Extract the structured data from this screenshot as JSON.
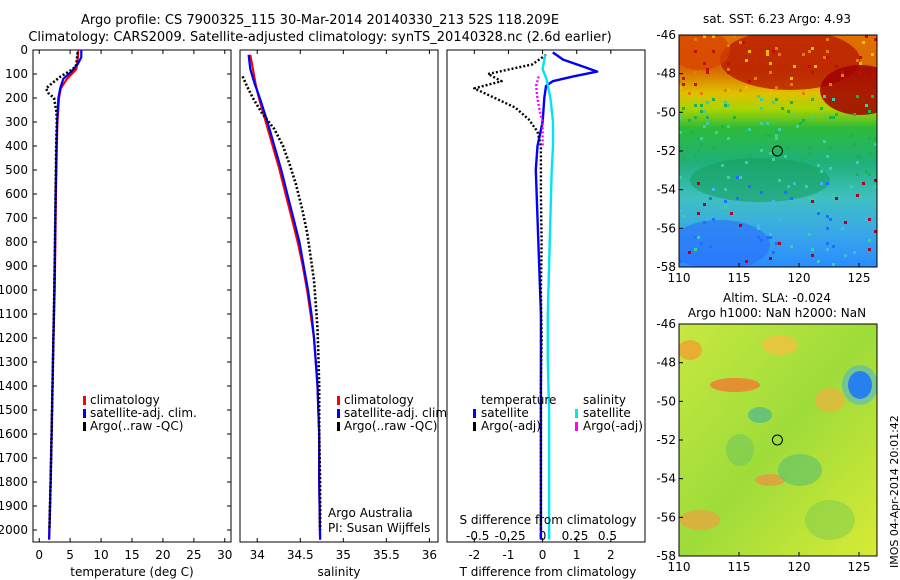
{
  "title": {
    "line1": "Argo profile: CS 7900325_115 30-Mar-2014 20140330_213 52S 118.209E",
    "line2": "Climatology: CARS2009. Satellite-adjusted climatology: synTS_20140328.nc (2.6d earlier)"
  },
  "credit": {
    "org": "Argo Australia",
    "pi": "PI: Susan Wijffels",
    "imos": "IMOS 04-Apr-2014 20:01:42"
  },
  "colors": {
    "climatology": "#ff0000",
    "satellite": "#0000ff",
    "argo": "#000000",
    "salinity_satellite": "#00e5ee",
    "salinity_argo": "#ff00ff"
  },
  "chart_data": [
    {
      "id": "temperature",
      "type": "line",
      "xlabel": "temperature (deg C)",
      "ylabel": "",
      "xlim": [
        -1,
        31
      ],
      "ylim": [
        2050,
        0
      ],
      "xticks": [
        "0",
        "5",
        "10",
        "15",
        "20",
        "25",
        "30"
      ],
      "xtick_values": [
        0,
        5,
        10,
        15,
        20,
        25,
        30
      ],
      "yticks": [
        "0",
        "100",
        "200",
        "300",
        "400",
        "500",
        "600",
        "700",
        "800",
        "900",
        "1000",
        "1100",
        "1200",
        "1300",
        "1400",
        "1500",
        "1600",
        "1700",
        "1800",
        "1900",
        "2000"
      ],
      "ytick_values": [
        0,
        100,
        200,
        300,
        400,
        500,
        600,
        700,
        800,
        900,
        1000,
        1100,
        1200,
        1300,
        1400,
        1500,
        1600,
        1700,
        1800,
        1900,
        2000
      ],
      "legend": [
        "climatology",
        "satellite-adj. clim.",
        "Argo(..raw -QC)"
      ],
      "series": [
        {
          "name": "climatology",
          "points": [
            [
              6.3,
              0
            ],
            [
              6.2,
              40
            ],
            [
              6.0,
              80
            ],
            [
              4.5,
              120
            ],
            [
              3.5,
              160
            ],
            [
              3.2,
              200
            ],
            [
              2.95,
              300
            ],
            [
              2.85,
              400
            ],
            [
              2.7,
              600
            ],
            [
              2.6,
              800
            ],
            [
              2.5,
              1000
            ],
            [
              2.3,
              1200
            ],
            [
              2.15,
              1400
            ],
            [
              2.0,
              1600
            ],
            [
              1.85,
              1800
            ],
            [
              1.65,
              2000
            ],
            [
              1.6,
              2040
            ]
          ]
        },
        {
          "name": "satellite-adj. clim.",
          "points": [
            [
              6.8,
              0
            ],
            [
              6.8,
              30
            ],
            [
              6.2,
              60
            ],
            [
              5.2,
              90
            ],
            [
              3.9,
              120
            ],
            [
              3.4,
              160
            ],
            [
              3.1,
              200
            ],
            [
              2.9,
              300
            ],
            [
              2.8,
              400
            ],
            [
              2.65,
              600
            ],
            [
              2.55,
              800
            ],
            [
              2.45,
              1000
            ],
            [
              2.3,
              1200
            ],
            [
              2.15,
              1400
            ],
            [
              2.0,
              1600
            ],
            [
              1.85,
              1800
            ],
            [
              1.65,
              2000
            ],
            [
              1.6,
              2040
            ]
          ]
        },
        {
          "name": "Argo(..raw -QC)",
          "points": [
            [
              6.2,
              10
            ],
            [
              6.1,
              40
            ],
            [
              5.9,
              70
            ],
            [
              4.8,
              90
            ],
            [
              3.5,
              110
            ],
            [
              2.0,
              140
            ],
            [
              1.1,
              160
            ],
            [
              1.5,
              180
            ],
            [
              2.4,
              200
            ],
            [
              2.8,
              260
            ],
            [
              2.85,
              300
            ],
            [
              2.75,
              400
            ],
            [
              2.65,
              600
            ],
            [
              2.55,
              800
            ],
            [
              2.45,
              1000
            ],
            [
              2.3,
              1200
            ],
            [
              2.15,
              1400
            ],
            [
              2.0,
              1600
            ],
            [
              1.85,
              1800
            ],
            [
              1.65,
              2000
            ]
          ]
        }
      ]
    },
    {
      "id": "salinity",
      "type": "line",
      "xlabel": "salinity",
      "xlim": [
        33.8,
        36.1
      ],
      "ylim": [
        2050,
        0
      ],
      "xticks": [
        "34",
        "34.5",
        "35",
        "35.5",
        "36"
      ],
      "xtick_values": [
        34,
        34.5,
        35,
        35.5,
        36
      ],
      "legend": [
        "climatology",
        "satellite-adj. clim.",
        "Argo(..raw -QC)"
      ],
      "series": [
        {
          "name": "climatology",
          "points": [
            [
              33.92,
              20
            ],
            [
              33.95,
              80
            ],
            [
              33.98,
              140
            ],
            [
              34.02,
              200
            ],
            [
              34.1,
              300
            ],
            [
              34.18,
              400
            ],
            [
              34.26,
              500
            ],
            [
              34.33,
              600
            ],
            [
              34.4,
              700
            ],
            [
              34.47,
              800
            ],
            [
              34.53,
              900
            ],
            [
              34.58,
              1000
            ],
            [
              34.62,
              1100
            ],
            [
              34.66,
              1200
            ],
            [
              34.68,
              1300
            ],
            [
              34.7,
              1400
            ],
            [
              34.71,
              1500
            ],
            [
              34.72,
              1600
            ],
            [
              34.72,
              1800
            ],
            [
              34.73,
              2040
            ]
          ]
        },
        {
          "name": "satellite-adj. clim.",
          "points": [
            [
              33.9,
              20
            ],
            [
              33.92,
              80
            ],
            [
              33.97,
              140
            ],
            [
              34.03,
              200
            ],
            [
              34.12,
              300
            ],
            [
              34.2,
              400
            ],
            [
              34.28,
              500
            ],
            [
              34.35,
              600
            ],
            [
              34.42,
              700
            ],
            [
              34.49,
              800
            ],
            [
              34.54,
              900
            ],
            [
              34.59,
              1000
            ],
            [
              34.63,
              1100
            ],
            [
              34.66,
              1200
            ],
            [
              34.68,
              1300
            ],
            [
              34.7,
              1400
            ],
            [
              34.71,
              1500
            ],
            [
              34.72,
              1600
            ],
            [
              34.72,
              1800
            ],
            [
              34.73,
              2040
            ]
          ]
        },
        {
          "name": "Argo(..raw -QC)",
          "points": [
            [
              33.83,
              110
            ],
            [
              33.88,
              150
            ],
            [
              33.95,
              200
            ],
            [
              34.05,
              260
            ],
            [
              34.2,
              330
            ],
            [
              34.3,
              400
            ],
            [
              34.38,
              480
            ],
            [
              34.45,
              560
            ],
            [
              34.52,
              660
            ],
            [
              34.58,
              760
            ],
            [
              34.62,
              860
            ],
            [
              34.66,
              960
            ],
            [
              34.68,
              1060
            ],
            [
              34.7,
              1160
            ],
            [
              34.71,
              1260
            ],
            [
              34.72,
              1400
            ],
            [
              34.72,
              1600
            ],
            [
              34.73,
              1800
            ],
            [
              34.73,
              2000
            ]
          ]
        }
      ]
    },
    {
      "id": "difference",
      "type": "line",
      "xlabel": "T difference from climatology",
      "xlabel_top": "S difference from climatology",
      "xlim": [
        -2.8,
        3.0
      ],
      "ylim": [
        2050,
        0
      ],
      "xticks": [
        "-2",
        "-1",
        "0",
        "1",
        "2"
      ],
      "xtick_values": [
        -2,
        -1,
        0,
        1,
        2
      ],
      "xticks_top": [
        "-0.5",
        "-0.25",
        "0",
        "0.25",
        "0.5"
      ],
      "xtick_top_values": [
        -0.5,
        -0.25,
        0,
        0.25,
        0.5
      ],
      "legend_temperature_title": "temperature",
      "legend_salinity_title": "salinity",
      "legend_temperature": [
        "satellite",
        "Argo(-adj)"
      ],
      "legend_salinity": [
        "satellite",
        "Argo(-adj)"
      ],
      "series": [
        {
          "name": "T satellite",
          "points": [
            [
              0.3,
              10
            ],
            [
              0.6,
              40
            ],
            [
              1.2,
              70
            ],
            [
              1.6,
              90
            ],
            [
              0.9,
              110
            ],
            [
              0.3,
              130
            ],
            [
              0.1,
              150
            ],
            [
              0.05,
              200
            ],
            [
              0.0,
              300
            ],
            [
              -0.15,
              400
            ],
            [
              -0.2,
              500
            ],
            [
              -0.15,
              700
            ],
            [
              -0.1,
              900
            ],
            [
              -0.05,
              1100
            ],
            [
              -0.05,
              1300
            ],
            [
              -0.05,
              1500
            ],
            [
              -0.05,
              1700
            ],
            [
              -0.05,
              1900
            ],
            [
              -0.05,
              2040
            ]
          ]
        },
        {
          "name": "T Argo(-adj)",
          "points": [
            [
              0.1,
              20
            ],
            [
              -0.3,
              60
            ],
            [
              -1.6,
              100
            ],
            [
              -1.2,
              130
            ],
            [
              -2.0,
              160
            ],
            [
              -1.4,
              200
            ],
            [
              -0.8,
              240
            ],
            [
              -0.4,
              290
            ],
            [
              -0.15,
              340
            ],
            [
              -0.05,
              400
            ],
            [
              -0.05,
              600
            ],
            [
              -0.03,
              800
            ],
            [
              -0.05,
              1000
            ],
            [
              -0.03,
              1200
            ],
            [
              -0.05,
              1400
            ],
            [
              -0.05,
              1600
            ],
            [
              -0.05,
              1800
            ],
            [
              -0.05,
              2000
            ]
          ]
        },
        {
          "name": "S satellite",
          "points": [
            [
              0.02,
              20
            ],
            [
              0.0,
              80
            ],
            [
              0.03,
              120
            ],
            [
              0.06,
              200
            ],
            [
              0.08,
              300
            ],
            [
              0.08,
              400
            ],
            [
              0.07,
              500
            ],
            [
              0.06,
              700
            ],
            [
              0.05,
              900
            ],
            [
              0.04,
              1100
            ],
            [
              0.04,
              1300
            ],
            [
              0.05,
              1500
            ],
            [
              0.05,
              1700
            ],
            [
              0.05,
              1900
            ],
            [
              0.05,
              2040
            ]
          ]
        },
        {
          "name": "S Argo(-adj)",
          "points": [
            [
              -0.03,
              110
            ],
            [
              -0.05,
              150
            ],
            [
              -0.04,
              200
            ],
            [
              -0.02,
              260
            ],
            [
              0.0,
              300
            ],
            [
              0.0,
              400
            ]
          ]
        }
      ]
    },
    {
      "id": "sst-map",
      "type": "heatmap",
      "title": "sat. SST: 6.23 Argo: 4.93",
      "xlim": [
        110,
        126.5
      ],
      "ylim": [
        -58,
        -46
      ],
      "xticks": [
        "110",
        "115",
        "120",
        "125"
      ],
      "xtick_values": [
        110,
        115,
        120,
        125
      ],
      "yticks": [
        "-46",
        "-48",
        "-50",
        "-52",
        "-54",
        "-56",
        "-58"
      ],
      "ytick_values": [
        -46,
        -48,
        -50,
        -52,
        -54,
        -56,
        -58
      ],
      "marker": [
        118.2,
        -52.0
      ]
    },
    {
      "id": "sla-map",
      "type": "heatmap",
      "title": "Altim. SLA: -0.024",
      "subtitle": "Argo h1000: NaN h2000: NaN",
      "xlim": [
        110,
        126.5
      ],
      "ylim": [
        -58,
        -46
      ],
      "xticks": [
        "110",
        "115",
        "120",
        "125"
      ],
      "xtick_values": [
        110,
        115,
        120,
        125
      ],
      "yticks": [
        "-46",
        "-48",
        "-50",
        "-52",
        "-54",
        "-56",
        "-58"
      ],
      "ytick_values": [
        -46,
        -48,
        -50,
        -52,
        -54,
        -56,
        -58
      ],
      "marker": [
        118.2,
        -52.0
      ]
    }
  ]
}
